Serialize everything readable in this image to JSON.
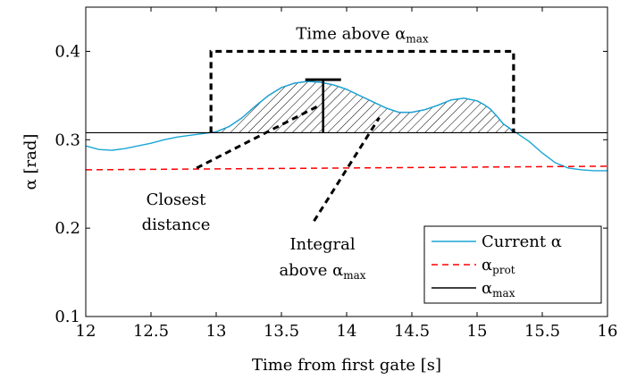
{
  "chart_data": {
    "type": "line",
    "title": "",
    "xlabel": "Time from first gate [s]",
    "ylabel": "α [rad]",
    "xlim": [
      12,
      16
    ],
    "ylim": [
      0.1,
      0.45
    ],
    "x_ticks": [
      12,
      12.5,
      13,
      13.5,
      14,
      14.5,
      15,
      15.5,
      16
    ],
    "x_tick_labels": [
      "12",
      "12.5",
      "13",
      "13.5",
      "14",
      "14.5",
      "15",
      "15.5",
      "16"
    ],
    "y_ticks": [
      0.1,
      0.2,
      0.3,
      0.4
    ],
    "y_tick_labels": [
      "0.1",
      "0.2",
      "0.3",
      "0.4"
    ],
    "grid": false,
    "legend_position": "bottom-right",
    "series": [
      {
        "name": "Current α",
        "color": "#1aa6d6",
        "style": "solid",
        "x": [
          12,
          12.1,
          12.2,
          12.3,
          12.4,
          12.5,
          12.6,
          12.7,
          12.8,
          12.9,
          13,
          13.1,
          13.2,
          13.3,
          13.4,
          13.5,
          13.6,
          13.7,
          13.8,
          13.9,
          14,
          14.1,
          14.2,
          14.3,
          14.4,
          14.5,
          14.6,
          14.7,
          14.8,
          14.9,
          15,
          15.05,
          15.1,
          15.15,
          15.2,
          15.25,
          15.3,
          15.4,
          15.5,
          15.6,
          15.7,
          15.8,
          15.9,
          16
        ],
        "y": [
          0.293,
          0.289,
          0.288,
          0.29,
          0.293,
          0.296,
          0.3,
          0.303,
          0.305,
          0.307,
          0.309,
          0.315,
          0.325,
          0.338,
          0.35,
          0.359,
          0.364,
          0.366,
          0.365,
          0.362,
          0.357,
          0.35,
          0.343,
          0.336,
          0.331,
          0.331,
          0.334,
          0.339,
          0.345,
          0.347,
          0.344,
          0.34,
          0.335,
          0.327,
          0.318,
          0.313,
          0.308,
          0.298,
          0.285,
          0.274,
          0.268,
          0.266,
          0.265,
          0.265
        ]
      },
      {
        "name": "α_prot",
        "color": "#ff0000",
        "style": "dashed",
        "x": [
          12,
          16
        ],
        "y": [
          0.266,
          0.27
        ]
      },
      {
        "name": "α_max",
        "color": "#000000",
        "style": "solid",
        "x": [
          12,
          16
        ],
        "y": [
          0.308,
          0.308
        ]
      }
    ],
    "hatched_region": {
      "x_start": 12.96,
      "x_end": 15.28
    },
    "annotations": {
      "time_above": {
        "label": "Time above α",
        "sub": "max",
        "x_start": 12.96,
        "x_end": 15.28,
        "y_top": 0.4
      },
      "closest_distance": {
        "lines": [
          "Closest",
          "distance"
        ],
        "x": 13.82,
        "y_low": 0.308,
        "y_high": 0.368,
        "arrow_from": [
          12.85,
          0.268
        ],
        "arrow_to": [
          13.78,
          0.338
        ]
      },
      "integral": {
        "line1": "Integral",
        "line2": "above α",
        "sub": "max",
        "arrow_from": [
          13.75,
          0.208
        ],
        "arrow_to": [
          14.25,
          0.325
        ]
      }
    },
    "legend": [
      {
        "label": "Current α",
        "sub": "",
        "color": "#1aa6d6",
        "style": "solid"
      },
      {
        "label": "α",
        "sub": "prot",
        "color": "#ff0000",
        "style": "dashed"
      },
      {
        "label": "α",
        "sub": "max",
        "color": "#000000",
        "style": "solid"
      }
    ]
  }
}
